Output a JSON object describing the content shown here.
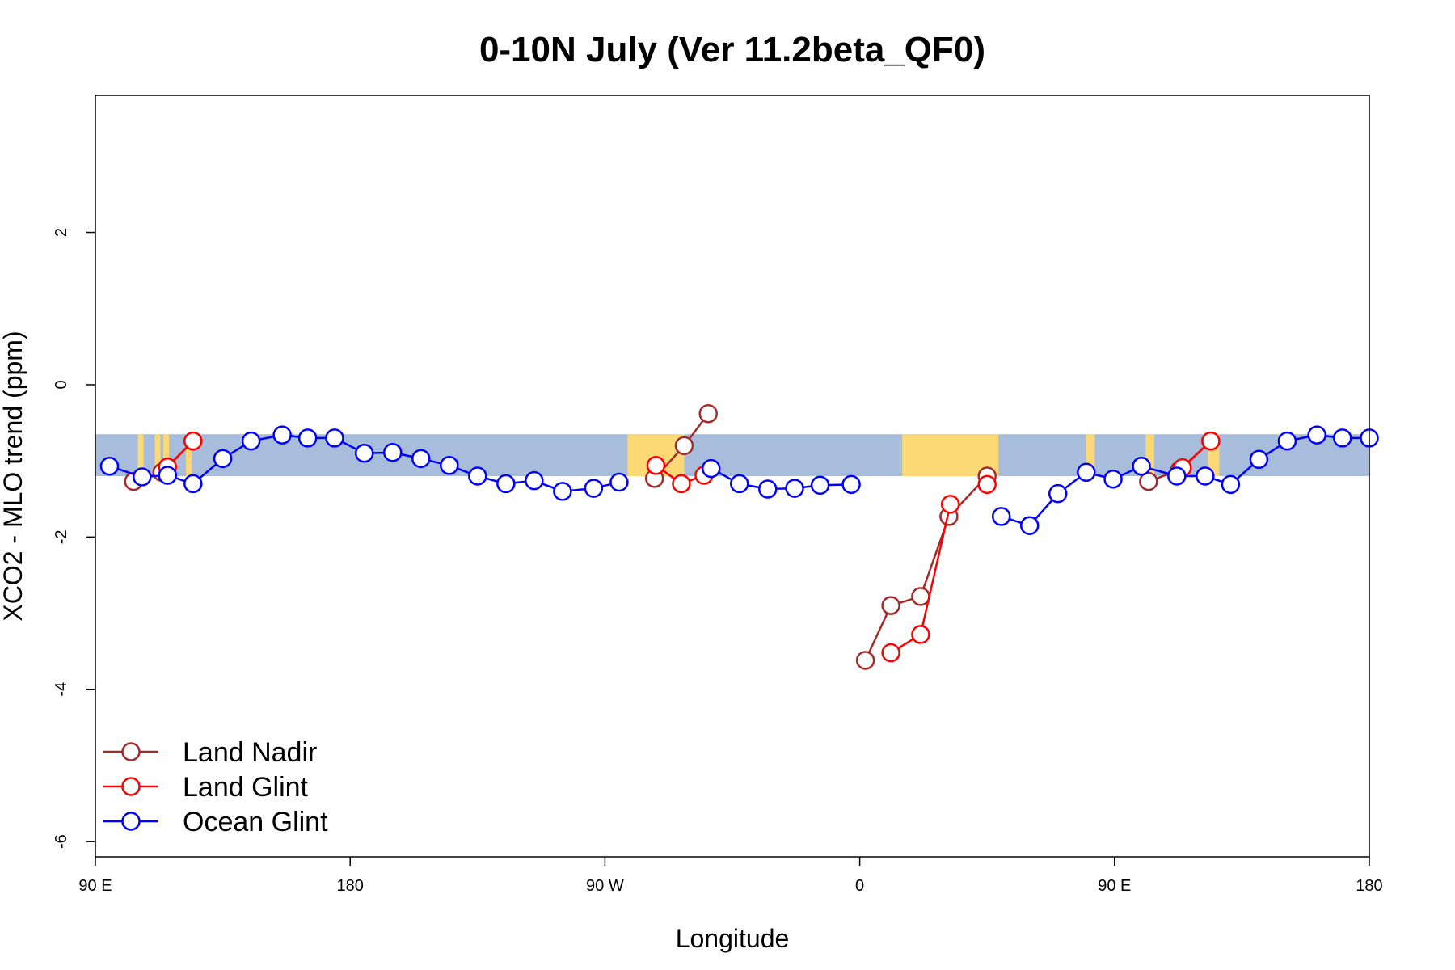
{
  "chart_data": {
    "type": "line",
    "title": "0-10N July (Ver 11.2beta_QF0)",
    "xlabel": "Longitude",
    "ylabel": "XCO2 - MLO trend (ppm)",
    "xlim": [
      90,
      540
    ],
    "ylim": [
      -6.2,
      3.8
    ],
    "x_ticks": [
      {
        "value": 90,
        "label": "90 E"
      },
      {
        "value": 180,
        "label": "180"
      },
      {
        "value": 270,
        "label": "90 W"
      },
      {
        "value": 360,
        "label": "0"
      },
      {
        "value": 450,
        "label": "90 E"
      },
      {
        "value": 540,
        "label": "180"
      }
    ],
    "y_ticks": [
      {
        "value": 2,
        "label": "2"
      },
      {
        "value": 0,
        "label": "0"
      },
      {
        "value": -2,
        "label": "-2"
      },
      {
        "value": -4,
        "label": "-4"
      },
      {
        "value": -6,
        "label": "-6"
      }
    ],
    "background_band": {
      "ymin": -1.2,
      "ymax": -0.65,
      "ocean_color": "#a7bddb",
      "land_color": "#fdd975"
    },
    "land_spans": [
      {
        "x": [
          105,
          107
        ]
      },
      {
        "x": [
          114,
          116
        ]
      },
      {
        "x": [
          122,
          124
        ]
      },
      {
        "x": [
          111,
          113
        ]
      },
      {
        "x": [
          278,
          298
        ]
      },
      {
        "x": [
          375,
          409
        ]
      },
      {
        "x": [
          440,
          443
        ]
      },
      {
        "x": [
          461,
          464
        ]
      },
      {
        "x": [
          483,
          487
        ]
      },
      {
        "x": [
          394,
          396
        ]
      }
    ],
    "legend": {
      "position": "bottom-left"
    },
    "series": [
      {
        "name": "Land Nadir",
        "color": "#a52a2a",
        "segments": [
          [
            [
              103.5,
              -1.27
            ],
            [
              113.5,
              -1.15
            ],
            [
              124.5,
              -0.74
            ]
          ],
          [
            [
              287.5,
              -1.23
            ],
            [
              298,
              -0.8
            ],
            [
              306.5,
              -0.38
            ]
          ],
          [
            [
              362,
              -3.62
            ],
            [
              371,
              -2.9
            ],
            [
              381.5,
              -2.78
            ],
            [
              391.5,
              -1.73
            ],
            [
              405,
              -1.2
            ]
          ],
          [
            [
              462,
              -1.27
            ],
            [
              473,
              -1.12
            ],
            [
              484,
              -0.74
            ]
          ]
        ]
      },
      {
        "name": "Land Glint",
        "color": "#ff0000",
        "segments": [
          [
            [
              115.5,
              -1.08
            ],
            [
              124.5,
              -0.74
            ]
          ],
          [
            [
              288,
              -1.06
            ],
            [
              297,
              -1.3
            ],
            [
              305,
              -1.19
            ]
          ],
          [
            [
              371,
              -3.52
            ],
            [
              381.5,
              -3.28
            ],
            [
              392,
              -1.57
            ]
          ],
          [
            [
              405,
              -1.31
            ]
          ],
          [
            [
              474,
              -1.09
            ],
            [
              484,
              -0.74
            ]
          ]
        ]
      },
      {
        "name": "Ocean Glint",
        "color": "#0000ff",
        "segments": [
          [
            [
              95,
              -1.07
            ],
            [
              106.5,
              -1.21
            ],
            [
              115.5,
              -1.19
            ],
            [
              124.5,
              -1.3
            ],
            [
              135,
              -0.97
            ],
            [
              145,
              -0.74
            ],
            [
              156,
              -0.66
            ],
            [
              165,
              -0.7
            ],
            [
              174.5,
              -0.7
            ],
            [
              185,
              -0.9
            ],
            [
              195,
              -0.89
            ],
            [
              205,
              -0.97
            ],
            [
              215,
              -1.06
            ],
            [
              225,
              -1.2
            ],
            [
              235,
              -1.3
            ],
            [
              245,
              -1.26
            ],
            [
              255,
              -1.4
            ],
            [
              266,
              -1.36
            ],
            [
              275,
              -1.28
            ]
          ],
          [
            [
              307.5,
              -1.1
            ],
            [
              317.5,
              -1.3
            ],
            [
              327.5,
              -1.37
            ],
            [
              337,
              -1.36
            ],
            [
              346,
              -1.32
            ],
            [
              357,
              -1.31
            ]
          ],
          [
            [
              410,
              -1.73
            ],
            [
              420,
              -1.85
            ],
            [
              430,
              -1.43
            ],
            [
              440,
              -1.15
            ],
            [
              449.5,
              -1.24
            ],
            [
              459.5,
              -1.07
            ],
            [
              472,
              -1.2
            ],
            [
              482,
              -1.2
            ],
            [
              491,
              -1.31
            ],
            [
              501,
              -0.98
            ],
            [
              511,
              -0.74
            ],
            [
              521.5,
              -0.66
            ],
            [
              530.5,
              -0.7
            ],
            [
              540,
              -0.7
            ]
          ]
        ]
      }
    ]
  }
}
